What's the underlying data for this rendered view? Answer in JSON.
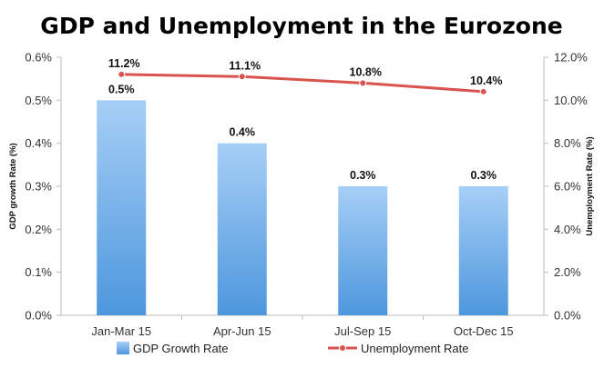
{
  "chart_data": {
    "type": "bar+line",
    "title": "GDP and Unemployment in the Eurozone",
    "categories": [
      "Jan-Mar 15",
      "Apr-Jun 15",
      "Jul-Sep 15",
      "Oct-Dec 15"
    ],
    "series": [
      {
        "name": "GDP Growth Rate",
        "type": "bar",
        "axis": "left",
        "values": [
          0.5,
          0.4,
          0.3,
          0.3
        ],
        "labels": [
          "0.5%",
          "0.4%",
          "0.3%",
          "0.3%"
        ],
        "color": "#7fb7ee"
      },
      {
        "name": "Unemployment Rate",
        "type": "line",
        "axis": "right",
        "values": [
          11.2,
          11.1,
          10.8,
          10.4
        ],
        "labels": [
          "11.2%",
          "11.1%",
          "10.8%",
          "10.4%"
        ],
        "color": "#d9534f"
      }
    ],
    "y_left": {
      "label": "GDP growth Rate (%)",
      "range": [
        0,
        0.6
      ],
      "ticks": [
        "0.0%",
        "0.1%",
        "0.2%",
        "0.3%",
        "0.4%",
        "0.5%",
        "0.6%"
      ]
    },
    "y_right": {
      "label": "Unemployment Rate (%)",
      "range": [
        0,
        12
      ],
      "ticks": [
        "0.0%",
        "2.0%",
        "4.0%",
        "6.0%",
        "8.0%",
        "10.0%",
        "12.0%"
      ]
    },
    "grid": false,
    "legend": "bottom"
  }
}
